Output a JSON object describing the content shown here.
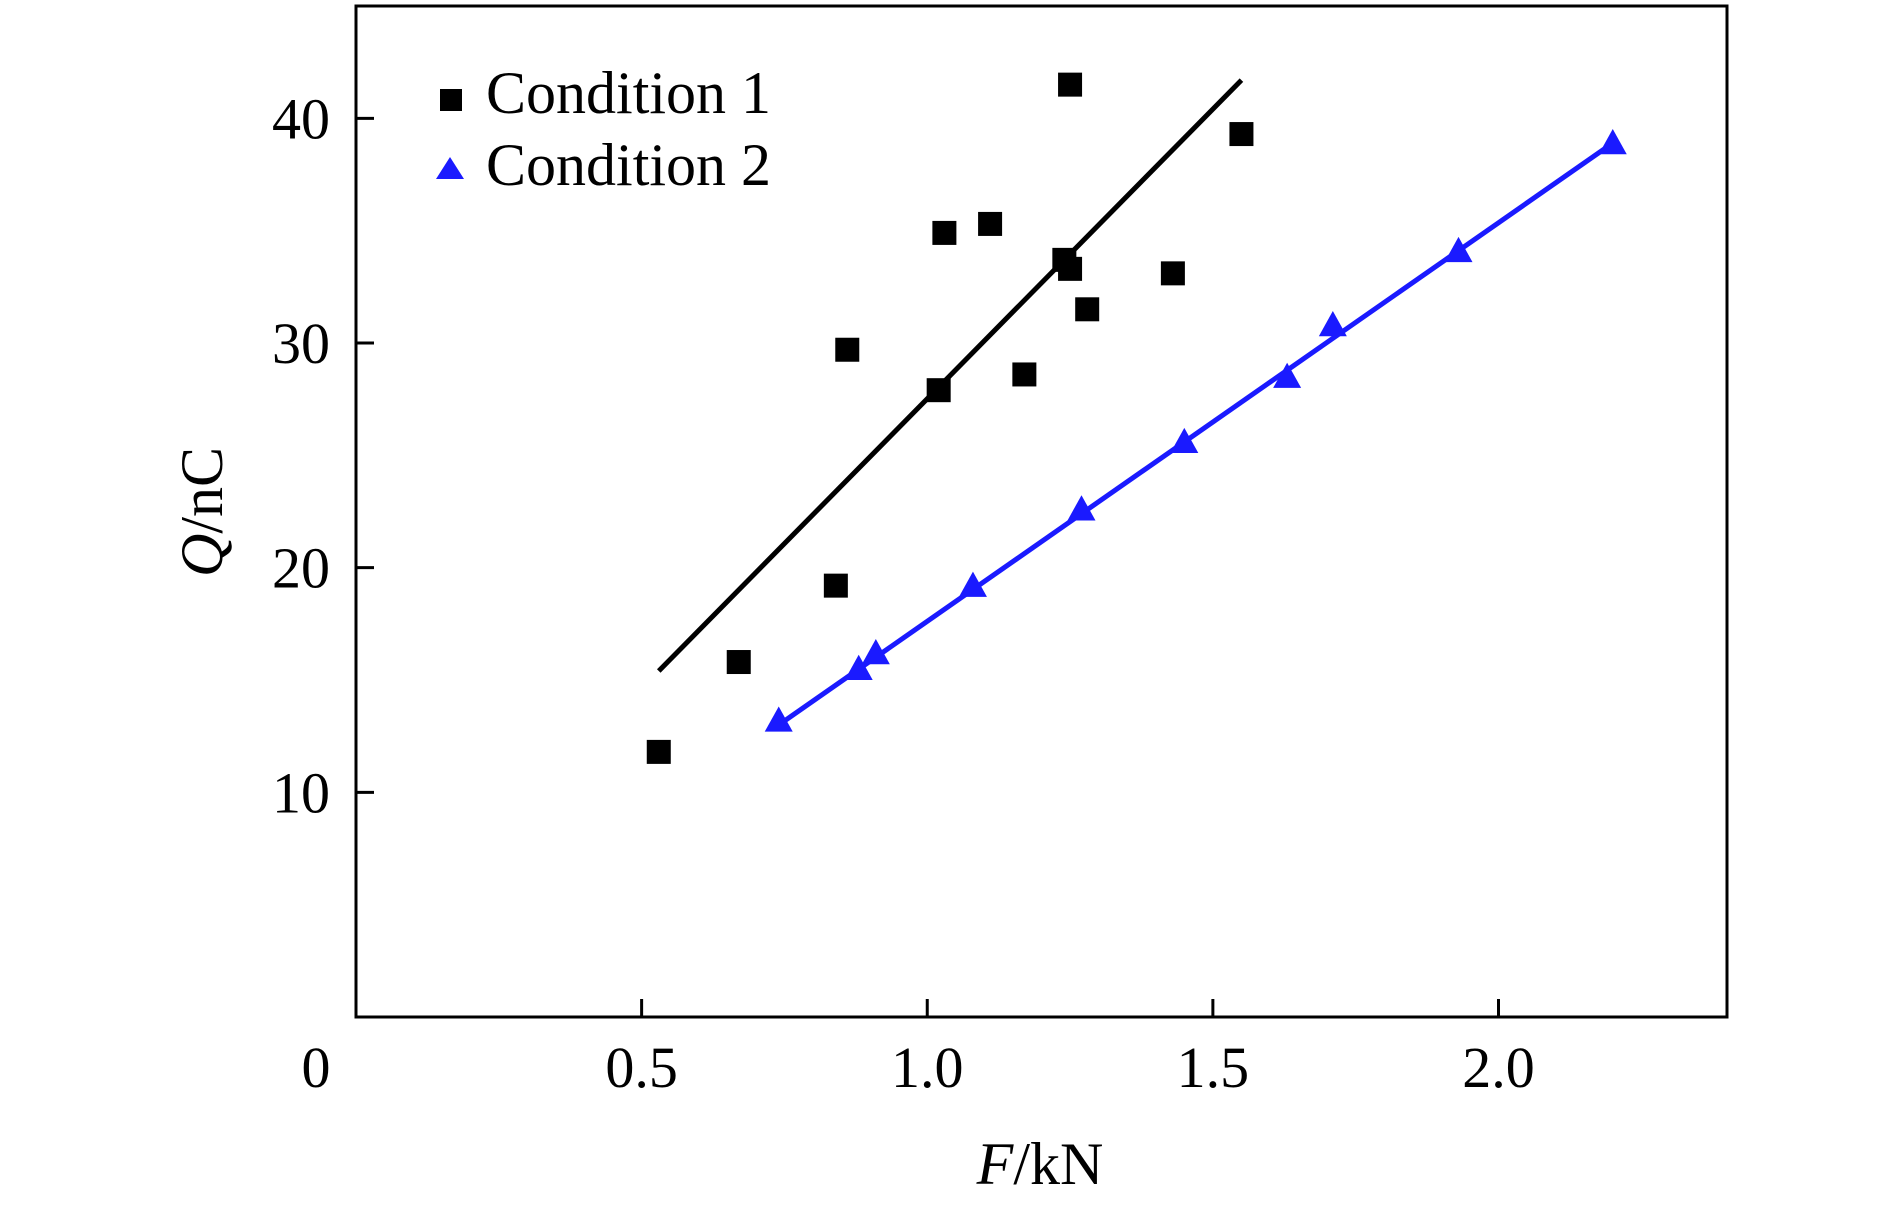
{
  "chart_data": {
    "type": "scatter",
    "title": "",
    "xlabel": {
      "italic": "F",
      "unit": "/kN"
    },
    "ylabel": {
      "italic": "Q",
      "unit": "/nC"
    },
    "xlim": [
      0,
      2.4
    ],
    "ylim": [
      0,
      45
    ],
    "origin_label": "0",
    "x_ticks": [
      {
        "value": 0.5,
        "label": "0.5"
      },
      {
        "value": 1.0,
        "label": "1.0"
      },
      {
        "value": 1.5,
        "label": "1.5"
      },
      {
        "value": 2.0,
        "label": "2.0"
      }
    ],
    "y_ticks": [
      {
        "value": 10,
        "label": "10"
      },
      {
        "value": 20,
        "label": "20"
      },
      {
        "value": 30,
        "label": "30"
      },
      {
        "value": 40,
        "label": "40"
      }
    ],
    "grid": false,
    "legend_position": "top-left",
    "series": [
      {
        "name": "Condition 1",
        "marker": "square",
        "color": "#000000",
        "points": [
          {
            "x": 0.53,
            "y": 11.8
          },
          {
            "x": 0.67,
            "y": 15.8
          },
          {
            "x": 0.84,
            "y": 19.2
          },
          {
            "x": 0.86,
            "y": 29.7
          },
          {
            "x": 1.02,
            "y": 27.9
          },
          {
            "x": 1.03,
            "y": 34.9
          },
          {
            "x": 1.11,
            "y": 35.3
          },
          {
            "x": 1.17,
            "y": 28.6
          },
          {
            "x": 1.24,
            "y": 33.7
          },
          {
            "x": 1.25,
            "y": 33.3
          },
          {
            "x": 1.25,
            "y": 41.5
          },
          {
            "x": 1.28,
            "y": 31.5
          },
          {
            "x": 1.43,
            "y": 33.1
          },
          {
            "x": 1.55,
            "y": 39.3
          }
        ],
        "fit_line": {
          "x": [
            0.53,
            1.55
          ],
          "y": [
            15.4,
            41.7
          ]
        }
      },
      {
        "name": "Condition 2",
        "marker": "triangle",
        "color": "#1a1aff",
        "points": [
          {
            "x": 0.74,
            "y": 13.2
          },
          {
            "x": 0.88,
            "y": 15.5
          },
          {
            "x": 0.91,
            "y": 16.2
          },
          {
            "x": 1.08,
            "y": 19.2
          },
          {
            "x": 1.27,
            "y": 22.6
          },
          {
            "x": 1.45,
            "y": 25.6
          },
          {
            "x": 1.63,
            "y": 28.5
          },
          {
            "x": 1.71,
            "y": 30.8
          },
          {
            "x": 1.93,
            "y": 34.1
          },
          {
            "x": 2.2,
            "y": 38.9
          }
        ],
        "fit_line": {
          "x": [
            0.74,
            2.2
          ],
          "y": [
            13.0,
            38.9
          ]
        }
      }
    ]
  }
}
